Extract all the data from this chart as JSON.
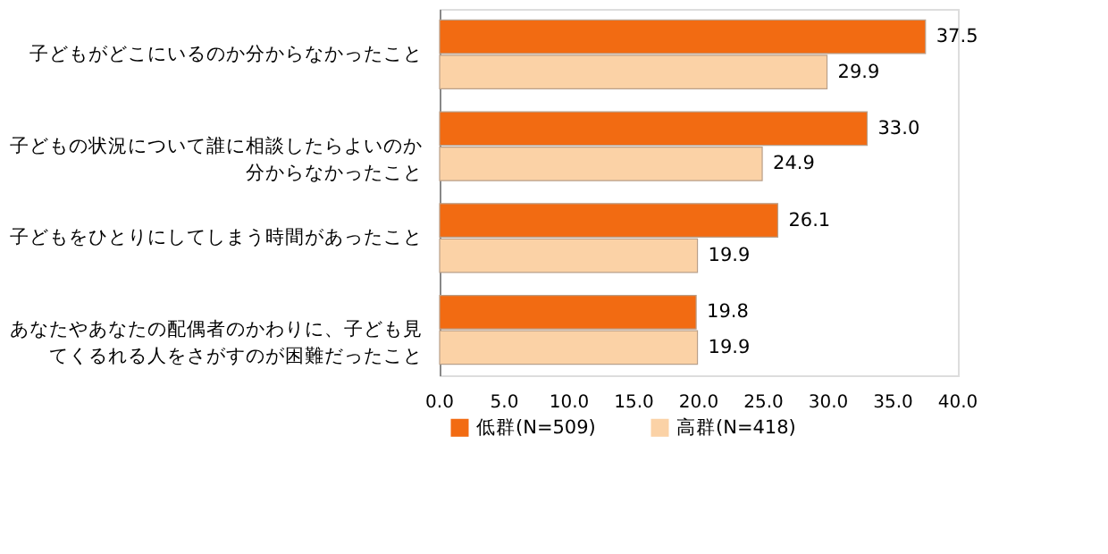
{
  "chart_data": {
    "type": "bar",
    "orientation": "horizontal",
    "categories": [
      "子どもがどこにいるのか分からなかったこと",
      "子どもの状況について誰に相談したらよいのか分からなかったこと",
      "子どもをひとりにしてしまう時間があったこと",
      "あなたやあなたの配偶者のかわりに、子ども見てくるれる人をさがすのが困難だったこと"
    ],
    "series": [
      {
        "name": "低群(N=509)",
        "color": "#f26b12",
        "values": [
          37.5,
          33.0,
          26.1,
          19.8
        ],
        "value_labels": [
          "37.5",
          "33.0",
          "26.1",
          "19.8"
        ]
      },
      {
        "name": "高群(N=418)",
        "color": "#fbd2a6",
        "values": [
          29.9,
          24.9,
          19.9,
          19.9
        ],
        "value_labels": [
          "29.9",
          "24.9",
          "19.9",
          "19.9"
        ]
      }
    ],
    "xlim": [
      0,
      40
    ],
    "xticks": [
      {
        "value": 0,
        "label": "0.0"
      },
      {
        "value": 5,
        "label": "5.0"
      },
      {
        "value": 10,
        "label": "10.0"
      },
      {
        "value": 15,
        "label": "15.0"
      },
      {
        "value": 20,
        "label": "20.0"
      },
      {
        "value": 25,
        "label": "25.0"
      },
      {
        "value": 30,
        "label": "30.0"
      },
      {
        "value": 35,
        "label": "35.0"
      },
      {
        "value": 40,
        "label": "40.0"
      }
    ],
    "grid": false,
    "legend": "bottom"
  }
}
